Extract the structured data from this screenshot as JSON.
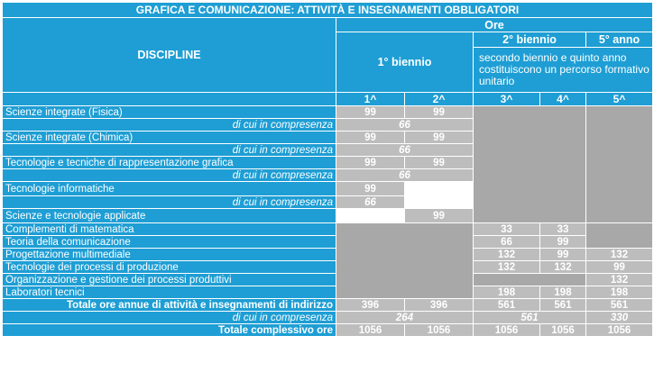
{
  "title": "GRAFICA E COMUNICAZIONE: ATTIVITÀ E INSEGNAMENTI OBBLIGATORI",
  "header": {
    "discipline": "DISCIPLINE",
    "ore": "Ore",
    "primo_biennio": "1° biennio",
    "secondo_biennio": "2° biennio",
    "quinto_anno": "5° anno",
    "note": "secondo biennio e quinto anno costituiscono un percorso formativo unitario",
    "years": [
      "1^",
      "2^",
      "3^",
      "4^",
      "5^"
    ]
  },
  "rows": [
    {
      "name": "Scienze integrate (Fisica)",
      "v1": "99",
      "v2": "99"
    },
    {
      "comp_label": "di cui in compresenza",
      "comp": "66"
    },
    {
      "name": "Scienze integrate (Chimica)",
      "v1": "99",
      "v2": "99"
    },
    {
      "comp_label": "di cui in compresenza",
      "comp": "66"
    },
    {
      "name": "Tecnologie e tecniche di rappresentazione grafica",
      "v1": "99",
      "v2": "99"
    },
    {
      "comp_label": "di cui in compresenza",
      "comp": "66"
    },
    {
      "name": "Tecnologie informatiche",
      "v1": "99"
    },
    {
      "comp_label": "di cui in compresenza",
      "comp": "66"
    },
    {
      "name": "Scienze e tecnologie applicate",
      "v2": "99"
    },
    {
      "name": "Complementi di matematica",
      "v3": "33",
      "v4": "33"
    },
    {
      "name": "Teoria della comunicazione",
      "v3": "66",
      "v4": "99"
    },
    {
      "name": "Progettazione multimediale",
      "v3": "132",
      "v4": "99",
      "v5": "132"
    },
    {
      "name": "Tecnologie dei processi di produzione",
      "v3": "132",
      "v4": "132",
      "v5": "99"
    },
    {
      "name": "Organizzazione e gestione dei processi produttivi",
      "v5": "132"
    },
    {
      "name": "Laboratori tecnici",
      "v3": "198",
      "v4": "198",
      "v5": "198"
    }
  ],
  "totals": {
    "label": "Totale ore annue di attività e insegnamenti di indirizzo",
    "values": [
      "396",
      "396",
      "561",
      "561",
      "561"
    ],
    "comp_label": "di cui in compresenza",
    "comp_values": [
      "264",
      "561",
      "330"
    ],
    "grand_label": "Totale complessivo ore",
    "grand_values": [
      "1056",
      "1056",
      "1056",
      "1056",
      "1056"
    ]
  }
}
